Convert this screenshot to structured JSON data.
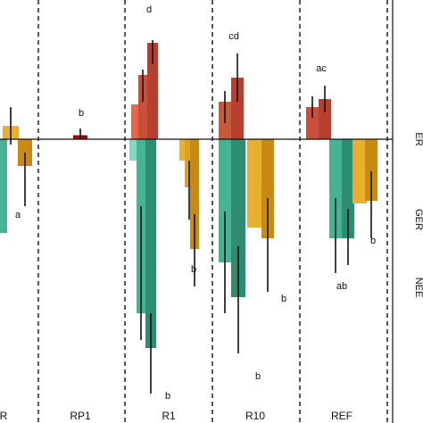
{
  "chart_data": {
    "type": "bar",
    "categories": [
      "R",
      "RP1",
      "R1",
      "R10",
      "REF"
    ],
    "ylim": [
      -100,
      40
    ],
    "zero_line": true,
    "grid": false,
    "legend": "none",
    "colors": {
      "ER": [
        "#e8664a",
        "#c8503a",
        "#b5402f",
        "#8b0f0f"
      ],
      "GER": "#e0a020",
      "NEE": "#46b394",
      "GER_dark": "#c98a14",
      "NEE_dark": "#2e8c72",
      "NEE_light": "#7fd8c0"
    },
    "series": [
      {
        "name": "ER",
        "values": [
          12,
          2,
          36,
          23,
          15
        ]
      },
      {
        "name": "GER",
        "values": [
          -10,
          0,
          -40,
          -39,
          -25
        ]
      },
      {
        "name": "NEE",
        "values": [
          -35,
          0,
          -82,
          -57,
          -37
        ]
      }
    ],
    "letters": [
      {
        "category": "R",
        "text": "a"
      },
      {
        "category": "RP1",
        "text": "b"
      },
      {
        "category": "R1",
        "text": "d"
      },
      {
        "category": "R1",
        "text": "b"
      },
      {
        "category": "R1",
        "text": "b"
      },
      {
        "category": "R10",
        "text": "cd"
      },
      {
        "category": "R10",
        "text": "b"
      },
      {
        "category": "R10",
        "text": "b"
      },
      {
        "category": "REF",
        "text": "ac"
      },
      {
        "category": "REF",
        "text": "ab"
      },
      {
        "category": "REF",
        "text": "b"
      }
    ],
    "right_labels": [
      "ER",
      "GER",
      "NEE"
    ]
  }
}
